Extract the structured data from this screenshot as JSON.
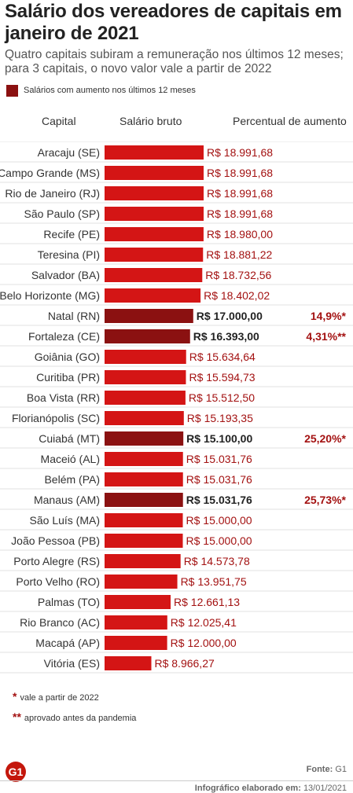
{
  "header": {
    "title": "Salário dos vereadores de capitais em janeiro de 2021",
    "subtitle": "Quatro capitais subiram a remuneração nos últimos 12 meses; para 3 capitais, o novo valor vale a partir de 2022"
  },
  "legend": {
    "label": "Salários com aumento nos últimos 12 meses",
    "color": "#8b1111"
  },
  "columns": {
    "capital": "Capital",
    "salary": "Salário bruto",
    "increase": "Percentual de aumento"
  },
  "colors": {
    "normal_bar": "#d41515",
    "raised_bar": "#8b1111",
    "increase_text": "#a31111"
  },
  "chart_data": {
    "type": "bar",
    "orientation": "horizontal",
    "categories": [
      "Aracaju (SE)",
      "Campo Grande (MS)",
      "Rio de Janeiro (RJ)",
      "São Paulo (SP)",
      "Recife (PE)",
      "Teresina (PI)",
      "Salvador (BA)",
      "Belo Horizonte (MG)",
      "Natal (RN)",
      "Fortaleza (CE)",
      "Goiânia (GO)",
      "Curitiba (PR)",
      "Boa Vista (RR)",
      "Florianópolis (SC)",
      "Cuiabá (MT)",
      "Maceió (AL)",
      "Belém (PA)",
      "Manaus (AM)",
      "São Luís (MA)",
      "João Pessoa (PB)",
      "Porto Alegre (RS)",
      "Porto Velho (RO)",
      "Palmas (TO)",
      "Rio Branco (AC)",
      "Macapá (AP)",
      "Vitória (ES)"
    ],
    "values": [
      18991.68,
      18991.68,
      18991.68,
      18991.68,
      18980.0,
      18881.22,
      18732.56,
      18402.02,
      17000.0,
      16393.0,
      15634.64,
      15594.73,
      15512.5,
      15193.35,
      15100.0,
      15031.76,
      15031.76,
      15031.76,
      15000.0,
      15000.0,
      14573.78,
      13951.75,
      12661.13,
      12025.41,
      12000.0,
      8966.27
    ],
    "value_labels": [
      "R$ 18.991,68",
      "R$ 18.991,68",
      "R$ 18.991,68",
      "R$ 18.991,68",
      "R$ 18.980,00",
      "R$ 18.881,22",
      "R$ 18.732,56",
      "R$ 18.402,02",
      "R$ 17.000,00",
      "R$ 16.393,00",
      "R$ 15.634,64",
      "R$ 15.594,73",
      "R$ 15.512,50",
      "R$ 15.193,35",
      "R$ 15.100,00",
      "R$ 15.031,76",
      "R$ 15.031,76",
      "R$ 15.031,76",
      "R$ 15.000,00",
      "R$ 15.000,00",
      "R$ 14.573,78",
      "R$ 13.951,75",
      "R$ 12.661,13",
      "R$ 12.025,41",
      "R$ 12.000,00",
      "R$ 8.966,27"
    ],
    "raised": [
      false,
      false,
      false,
      false,
      false,
      false,
      false,
      false,
      true,
      true,
      false,
      false,
      false,
      false,
      true,
      false,
      false,
      true,
      false,
      false,
      false,
      false,
      false,
      false,
      false,
      false
    ],
    "increase_labels": [
      "",
      "",
      "",
      "",
      "",
      "",
      "",
      "",
      "14,9%*",
      "4,31%**",
      "",
      "",
      "",
      "",
      "25,20%*",
      "",
      "",
      "25,73%*",
      "",
      "",
      "",
      "",
      "",
      "",
      "",
      ""
    ],
    "xlim": [
      0,
      18991.68
    ]
  },
  "footnotes": [
    {
      "mark": "*",
      "text": "vale a partir de 2022"
    },
    {
      "mark": "**",
      "text": "aprovado antes da pandemia"
    }
  ],
  "source": {
    "label": "Fonte:",
    "value": "G1"
  },
  "credit": {
    "label": "Infográfico elaborado em:",
    "value": "13/01/2021"
  },
  "logo": {
    "text": "G1"
  }
}
